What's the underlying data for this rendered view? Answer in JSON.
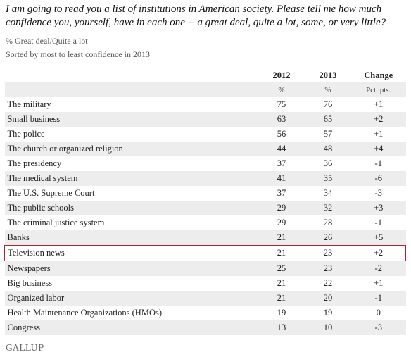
{
  "title": "I am going to read you a list of institutions in American society. Please tell me how much confidence you, yourself, have in each one -- a great deal, quite a lot, some, or very little?",
  "subtitle1": "% Great deal/Quite a lot",
  "subtitle2": "Sorted by most to least confidence in 2013",
  "logo": "GALLUP",
  "chart_data": {
    "type": "table",
    "columns": [
      "2012",
      "2013",
      "Change"
    ],
    "units": [
      "%",
      "%",
      "Pct. pts."
    ],
    "rows": [
      {
        "name": "The military",
        "y2012": "75",
        "y2013": "76",
        "change": "+1"
      },
      {
        "name": "Small business",
        "y2012": "63",
        "y2013": "65",
        "change": "+2"
      },
      {
        "name": "The police",
        "y2012": "56",
        "y2013": "57",
        "change": "+1"
      },
      {
        "name": "The church or organized religion",
        "y2012": "44",
        "y2013": "48",
        "change": "+4"
      },
      {
        "name": "The presidency",
        "y2012": "37",
        "y2013": "36",
        "change": "-1"
      },
      {
        "name": "The medical system",
        "y2012": "41",
        "y2013": "35",
        "change": "-6"
      },
      {
        "name": "The U.S. Supreme Court",
        "y2012": "37",
        "y2013": "34",
        "change": "-3"
      },
      {
        "name": "The public schools",
        "y2012": "29",
        "y2013": "32",
        "change": "+3"
      },
      {
        "name": "The criminal justice system",
        "y2012": "29",
        "y2013": "28",
        "change": "-1"
      },
      {
        "name": "Banks",
        "y2012": "21",
        "y2013": "26",
        "change": "+5"
      },
      {
        "name": "Television news",
        "y2012": "21",
        "y2013": "23",
        "change": "+2",
        "highlighted": true
      },
      {
        "name": "Newspapers",
        "y2012": "25",
        "y2013": "23",
        "change": "-2"
      },
      {
        "name": "Big business",
        "y2012": "21",
        "y2013": "22",
        "change": "+1"
      },
      {
        "name": "Organized labor",
        "y2012": "21",
        "y2013": "20",
        "change": "-1"
      },
      {
        "name": "Health Maintenance Organizations (HMOs)",
        "y2012": "19",
        "y2013": "19",
        "change": "0"
      },
      {
        "name": "Congress",
        "y2012": "13",
        "y2013": "10",
        "change": "-3"
      }
    ],
    "highlight_color": "#b22234",
    "shade_color": "#ededed"
  }
}
